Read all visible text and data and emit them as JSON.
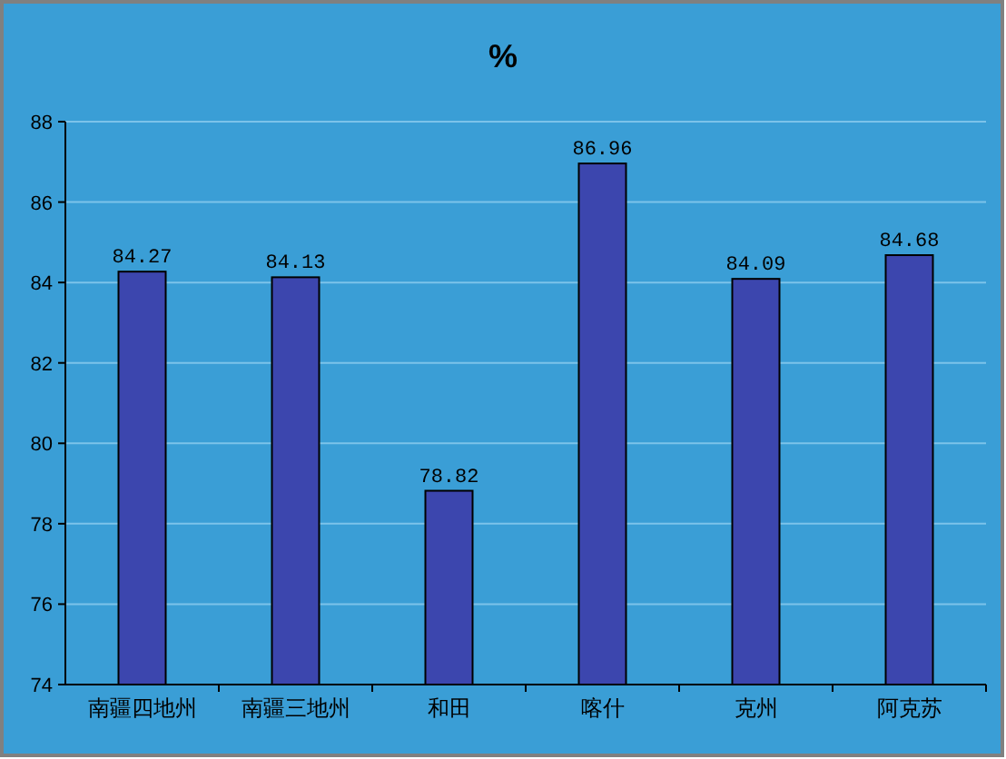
{
  "chart_data": {
    "type": "bar",
    "title": "%",
    "categories": [
      "南疆四地州",
      "南疆三地州",
      "和田",
      "喀什",
      "克州",
      "阿克苏"
    ],
    "values": [
      84.27,
      84.13,
      78.82,
      86.96,
      84.09,
      84.68
    ],
    "color": "#3c46ae",
    "ylim": [
      74,
      88
    ],
    "yticks": [
      74,
      76,
      78,
      80,
      82,
      84,
      86,
      88
    ],
    "grid": "y",
    "data_labels": true
  }
}
